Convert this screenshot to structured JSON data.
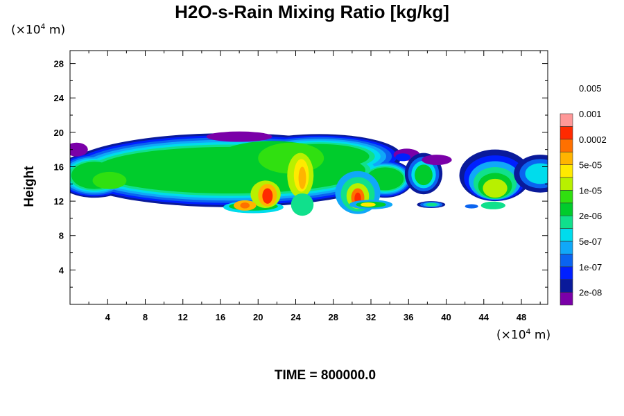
{
  "chart_data": {
    "type": "heatmap",
    "title": "H2O-s-Rain Mixing Ratio [kg/kg]",
    "ylabel": "Height",
    "xlabel": "",
    "x_unit": "(×10⁴ m)",
    "y_unit": "(×10⁴ m)",
    "xlim": [
      0,
      50.8
    ],
    "ylim": [
      0,
      29.5
    ],
    "x_ticks": [
      4,
      8,
      12,
      16,
      20,
      24,
      28,
      32,
      36,
      40,
      44,
      48
    ],
    "y_ticks": [
      4,
      8,
      12,
      16,
      20,
      24,
      28
    ],
    "colorbar": {
      "labels": [
        "2e-08",
        "1e-07",
        "5e-07",
        "2e-06",
        "1e-05",
        "5e-05",
        "0.0002",
        "0.001",
        "0.005"
      ],
      "colors": [
        "#7a00a8",
        "#0a1a9a",
        "#0020ff",
        "#0a64f0",
        "#10a8f8",
        "#00dcec",
        "#10e08c",
        "#00cc2c",
        "#30e010",
        "#b8f000",
        "#ffea00",
        "#ffb400",
        "#ff7000",
        "#ff2a00",
        "#ff9898"
      ]
    },
    "regions": [
      {
        "name": "main-band",
        "x_range": [
          0,
          51
        ],
        "y_range": [
          10.5,
          20
        ],
        "level": "1e-05"
      },
      {
        "name": "core-20",
        "x": 21,
        "y": 12.5,
        "level": "0.001"
      },
      {
        "name": "core-24",
        "x": 24.5,
        "y": 14.5,
        "level": "0.0002"
      },
      {
        "name": "core-30",
        "x": 30.5,
        "y": 12.5,
        "level": "0.001"
      },
      {
        "name": "cell-38",
        "x": 37.5,
        "y": 14.5,
        "level": "1e-05"
      },
      {
        "name": "cell-45",
        "x": 45,
        "y": 13,
        "level": "5e-05"
      }
    ]
  },
  "time_label": "TIME = 800000.0"
}
